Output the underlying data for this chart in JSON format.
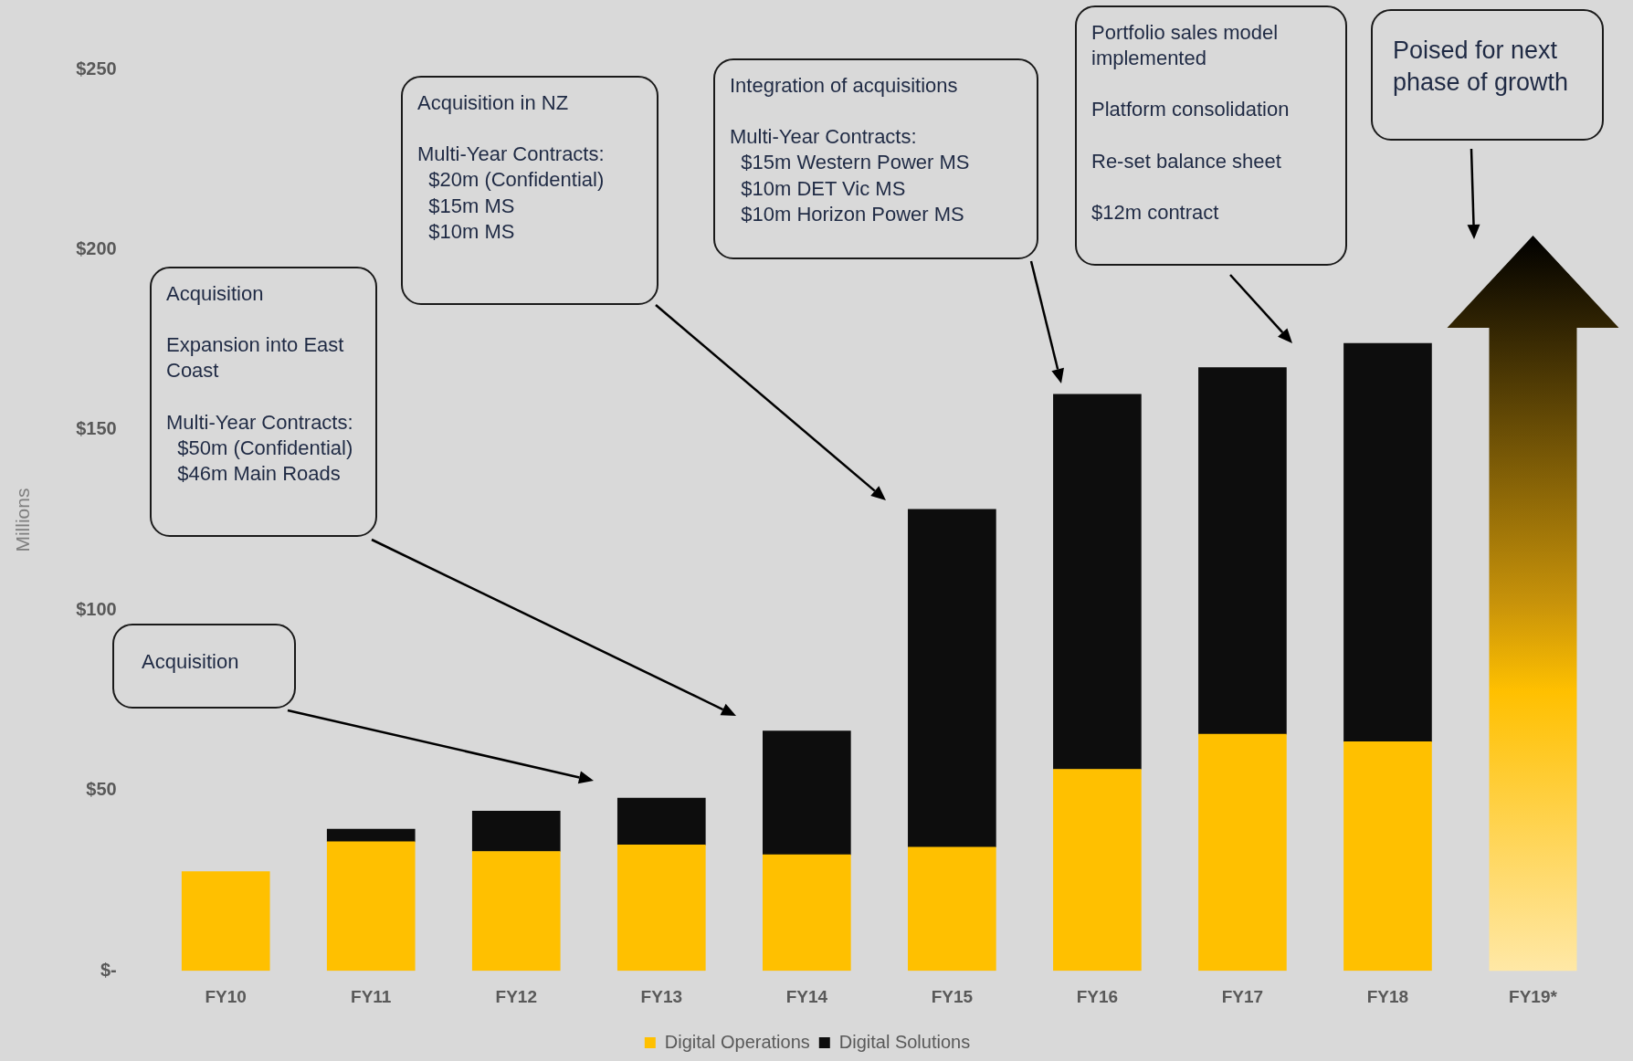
{
  "chart_data": {
    "type": "bar",
    "stacked": true,
    "ylabel": "Millions",
    "categories": [
      "FY10",
      "FY11",
      "FY12",
      "FY13",
      "FY14",
      "FY15",
      "FY16",
      "FY17",
      "FY18",
      "FY19*"
    ],
    "series": [
      {
        "name": "Digital Operations",
        "color": "#ffc000",
        "values": [
          27.5,
          35.8,
          33.1,
          34.9,
          32.2,
          34.3,
          55.9,
          65.6,
          63.5,
          null
        ]
      },
      {
        "name": "Digital Solutions",
        "color": "#0d0d0d",
        "values": [
          null,
          3.5,
          11.2,
          13.0,
          34.3,
          93.7,
          104.0,
          101.7,
          110.5,
          null
        ]
      }
    ],
    "ylim": [
      0,
      250
    ],
    "yticks": [
      {
        "value": 0,
        "label": "$-"
      },
      {
        "value": 50,
        "label": "$50"
      },
      {
        "value": 100,
        "label": "$100"
      },
      {
        "value": 150,
        "label": "$150"
      },
      {
        "value": 200,
        "label": "$200"
      },
      {
        "value": 250,
        "label": "$250"
      }
    ],
    "grid": false,
    "legend": "bottom",
    "annotations": [
      "Acquisition",
      "Acquisition\n\nExpansion into East Coast\n\nMulti-Year Contracts:\n  $50m (Confidential)\n  $46m Main Roads",
      "Acquisition in NZ\n\nMulti-Year Contracts:\n  $20m (Confidential)\n  $15m MS\n  $10m MS",
      "Integration of acquisitions\n\nMulti-Year Contracts:\n  $15m Western Power MS\n  $10m DET Vic MS\n  $10m Horizon Power MS",
      "Portfolio sales model implemented\n\nPlatform consolidation\n\nRe-set balance sheet\n\n$12m contract",
      "Poised for next phase of growth"
    ]
  }
}
